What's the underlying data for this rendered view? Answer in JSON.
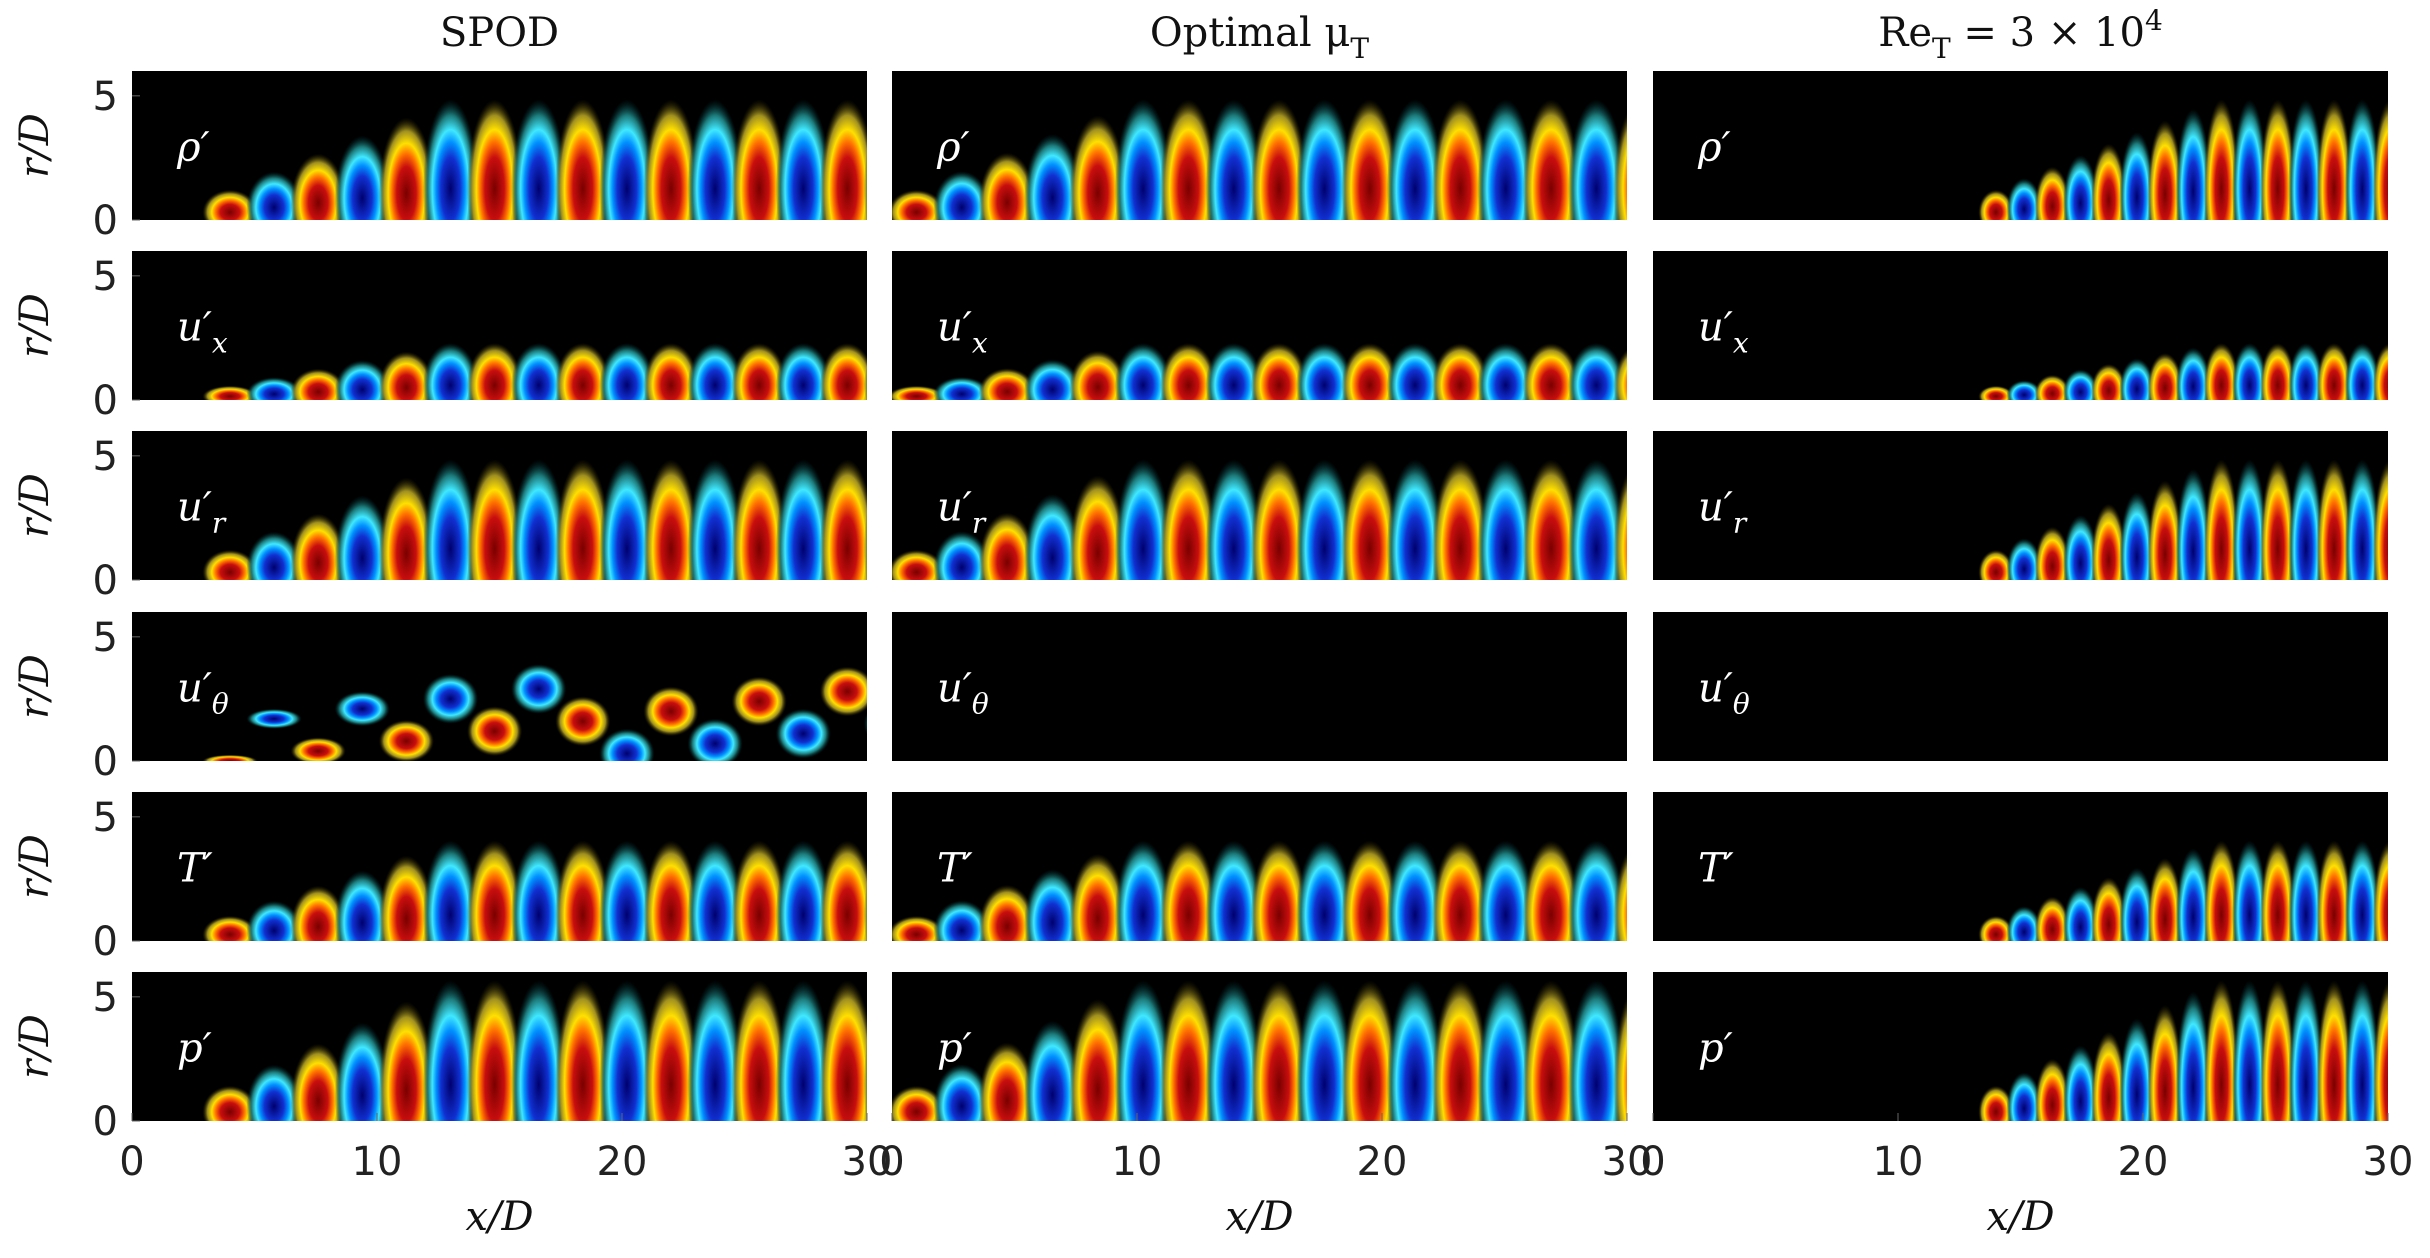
{
  "chart_data": {
    "type": "contour",
    "column_titles": [
      {
        "base": "SPOD"
      },
      {
        "base": "Optimal μ",
        "sub": "T"
      },
      {
        "base": "Re",
        "sub": "T",
        "rest": " = 3 × 10",
        "sup": "4"
      }
    ],
    "row_labels": [
      {
        "base": "ρ′"
      },
      {
        "base": "u′",
        "sub": "x"
      },
      {
        "base": "u′",
        "sub": "r"
      },
      {
        "base": "u′",
        "sub": "θ"
      },
      {
        "base": "T′"
      },
      {
        "base": "p′"
      }
    ],
    "xlabel": "x/D",
    "ylabel": "r/D",
    "xlim": [
      0,
      30
    ],
    "ylim": [
      0,
      6
    ],
    "xticks": [
      0,
      10,
      20,
      30
    ],
    "yticks": [
      0,
      5
    ]
  }
}
